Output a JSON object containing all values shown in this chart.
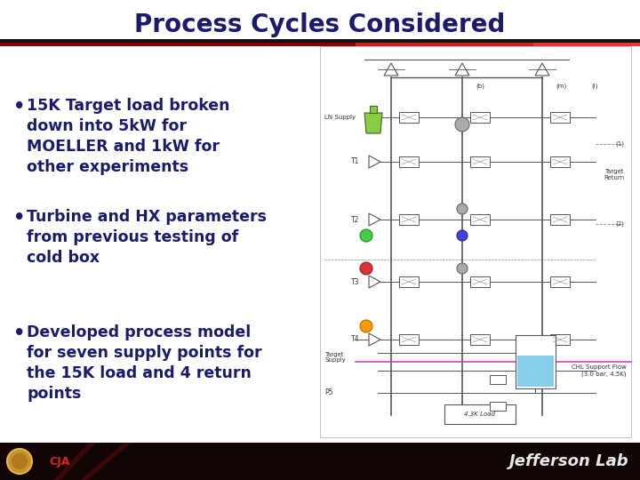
{
  "title": "Process Cycles Considered",
  "title_color": "#1a1a6e",
  "title_fontsize": 20,
  "bg_color": "#ffffff",
  "bullet_color": "#1a1a6e",
  "bullet_fontsize": 12.5,
  "bullets": [
    "15K Target load broken\ndown into 5kW for\nMOELLER and 1kW for\nother experiments",
    "Turbine and HX parameters\nfrom previous testing of\ncold box",
    "Developed process model\nfor seven supply points for\nthe 15K load and 4 return\npoints"
  ],
  "footer_bg": "#110505",
  "footer_text_right": "Jefferson Lab",
  "header_bar_colors": [
    "#1a0000",
    "#8b0000",
    "#cc0000",
    "#dd3333"
  ],
  "diag_bg": "#f8f8f8"
}
